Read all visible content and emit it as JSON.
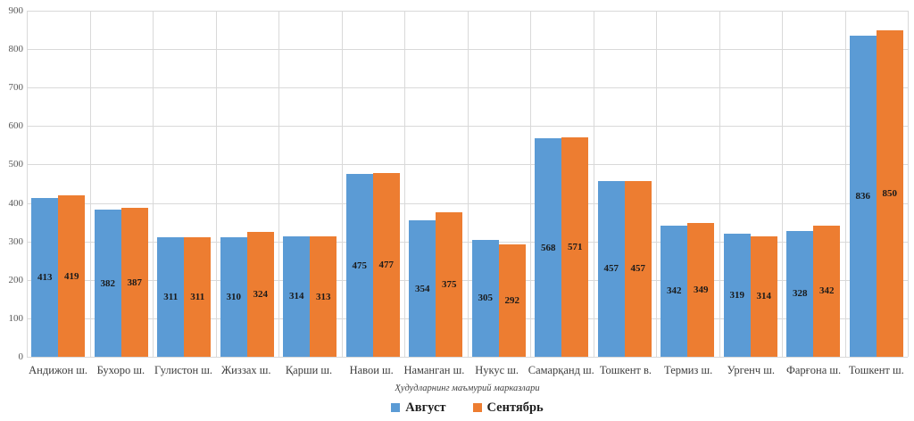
{
  "chart_data": {
    "type": "bar",
    "title": "",
    "categories": [
      "Андижон ш.",
      "Бухоро ш.",
      "Гулистон ш.",
      "Жиззах ш.",
      "Қарши ш.",
      "Навои ш.",
      "Наманган ш.",
      "Нукус ш.",
      "Самарқанд ш.",
      "Тошкент в.",
      "Термиз ш.",
      "Ургенч ш.",
      "Фарғона ш.",
      "Тошкент ш."
    ],
    "series": [
      {
        "name": "Август",
        "color": "#5B9BD5",
        "values": [
          413,
          382,
          311,
          310,
          314,
          475,
          354,
          305,
          568,
          457,
          342,
          319,
          328,
          836
        ]
      },
      {
        "name": "Сентябрь",
        "color": "#ED7D31",
        "values": [
          419,
          387,
          311,
          324,
          313,
          477,
          375,
          292,
          571,
          457,
          349,
          314,
          342,
          850
        ]
      }
    ],
    "xlabel": "Ҳудудларнинг маъмурий марказлари",
    "ylabel": "",
    "ylim": [
      0,
      900
    ],
    "yticks": [
      0,
      100,
      200,
      300,
      400,
      500,
      600,
      700,
      800,
      900
    ],
    "grid": true,
    "legend_position": "bottom",
    "data_labels": "inside-center",
    "gridline_color": "#d9d9d9",
    "tick_label_color": "#595959",
    "category_label_color": "#3d3d3d",
    "value_label_color": "#1a1a1a"
  }
}
